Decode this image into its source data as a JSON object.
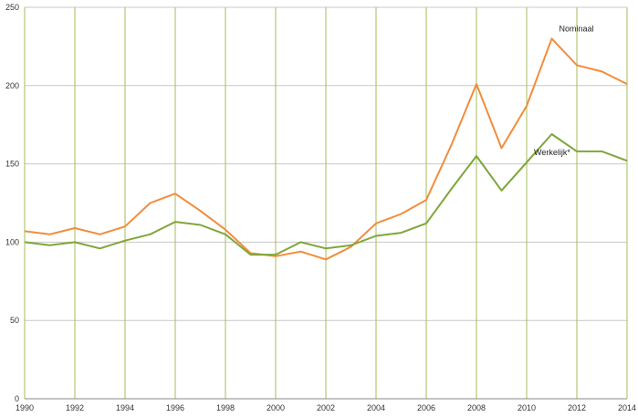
{
  "chart_data": {
    "type": "line",
    "title": "",
    "xlabel": "",
    "ylabel": "",
    "xlim": [
      1990,
      2014
    ],
    "ylim": [
      0,
      250
    ],
    "x_ticks": [
      1990,
      1992,
      1994,
      1996,
      1998,
      2000,
      2002,
      2004,
      2006,
      2008,
      2010,
      2012,
      2014
    ],
    "y_ticks": [
      0,
      50,
      100,
      150,
      200,
      250
    ],
    "grid": {
      "vertical": true,
      "horizontal": true
    },
    "colors": {
      "vertical_grid": "#a6be5a",
      "horizontal_grid": "#c8c8c8",
      "axis": "#888888"
    },
    "x": [
      1990,
      1991,
      1992,
      1993,
      1994,
      1995,
      1996,
      1997,
      1998,
      1999,
      2000,
      2001,
      2002,
      2003,
      2004,
      2005,
      2006,
      2007,
      2008,
      2009,
      2010,
      2011,
      2012,
      2013,
      2014
    ],
    "series": [
      {
        "name": "Nominaal",
        "color": "#f28c3c",
        "label_at": 2011,
        "values": [
          107,
          105,
          109,
          105,
          110,
          125,
          131,
          120,
          108,
          93,
          91,
          94,
          89,
          97,
          112,
          118,
          127,
          162,
          201,
          160,
          187,
          230,
          213,
          209,
          201
        ]
      },
      {
        "name": "Werkelijk*",
        "color": "#7fa63a",
        "label_at": 2010,
        "values": [
          100,
          98,
          100,
          96,
          101,
          105,
          113,
          111,
          105,
          92,
          92,
          100,
          96,
          98,
          104,
          106,
          112,
          134,
          155,
          133,
          151,
          169,
          158,
          158,
          152
        ]
      }
    ]
  }
}
